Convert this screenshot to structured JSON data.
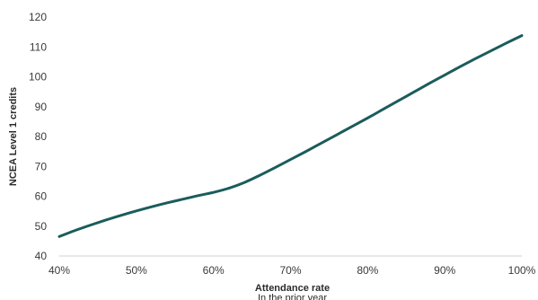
{
  "chart_data": {
    "type": "line",
    "title": "",
    "xlabel": "Attendance rate",
    "xlabel_sub": "In the prior year",
    "ylabel": "NCEA Level 1 credits",
    "xlim": [
      40,
      100
    ],
    "ylim": [
      40,
      120
    ],
    "x_ticks": [
      40,
      50,
      60,
      70,
      80,
      90,
      100
    ],
    "x_tick_labels": [
      "40%",
      "50%",
      "60%",
      "70%",
      "80%",
      "90%",
      "100%"
    ],
    "y_ticks": [
      40,
      50,
      60,
      70,
      80,
      90,
      100,
      110,
      120
    ],
    "y_tick_labels": [
      "40",
      "50",
      "60",
      "70",
      "80",
      "90",
      "100",
      "110",
      "120"
    ],
    "grid": false,
    "legend": "none",
    "series": [
      {
        "color": "#1b5c5c",
        "x": [
          40,
          42,
          44,
          46,
          48,
          50,
          52,
          54,
          56,
          58,
          60,
          62,
          64,
          66,
          68,
          70,
          72,
          74,
          76,
          78,
          80,
          82,
          84,
          86,
          88,
          90,
          92,
          94,
          96,
          98,
          100
        ],
        "y": [
          46.5,
          48.5,
          50.3,
          52,
          53.6,
          55.1,
          56.5,
          57.8,
          59,
          60.2,
          61.3,
          62.7,
          64.6,
          67,
          69.6,
          72.3,
          75,
          77.8,
          80.6,
          83.4,
          86.2,
          89.1,
          92,
          94.9,
          97.8,
          100.6,
          103.4,
          106.1,
          108.7,
          111.3,
          113.8
        ]
      }
    ]
  }
}
